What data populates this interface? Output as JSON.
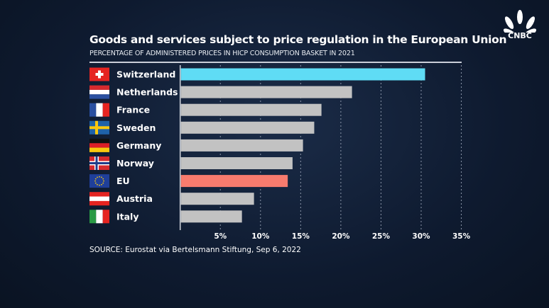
{
  "brand": {
    "logo": "CNBC"
  },
  "chart_data": {
    "type": "bar",
    "orientation": "horizontal",
    "title": "Goods and services subject to price regulation in the European Union",
    "subtitle": "PERCENTAGE OF ADMINISTERED PRICES IN HICP CONSUMPTION BASKET IN 2021",
    "categories": [
      "Switzerland",
      "Netherlands",
      "France",
      "Sweden",
      "Germany",
      "Norway",
      "EU",
      "Austria",
      "Italy"
    ],
    "values": [
      30.4,
      21.3,
      17.5,
      16.6,
      15.2,
      13.9,
      13.3,
      9.1,
      7.6
    ],
    "colors": [
      "#5fdcf5",
      "#c2c2c2",
      "#c2c2c2",
      "#c2c2c2",
      "#c2c2c2",
      "#c2c2c2",
      "#f87b6e",
      "#c2c2c2",
      "#c2c2c2"
    ],
    "flags": [
      "switzerland-flag",
      "netherlands-flag",
      "france-flag",
      "sweden-flag",
      "germany-flag",
      "norway-flag",
      "eu-flag",
      "austria-flag",
      "italy-flag"
    ],
    "xlim": [
      0,
      35
    ],
    "xticks": [
      "5%",
      "10%",
      "15%",
      "20%",
      "25%",
      "30%",
      "35%"
    ],
    "xtick_values": [
      5,
      10,
      15,
      20,
      25,
      30,
      35
    ],
    "grid": "vertical dashed",
    "source": "SOURCE: Eurostat via Bertelsmann Stiftung, Sep 6, 2022"
  }
}
